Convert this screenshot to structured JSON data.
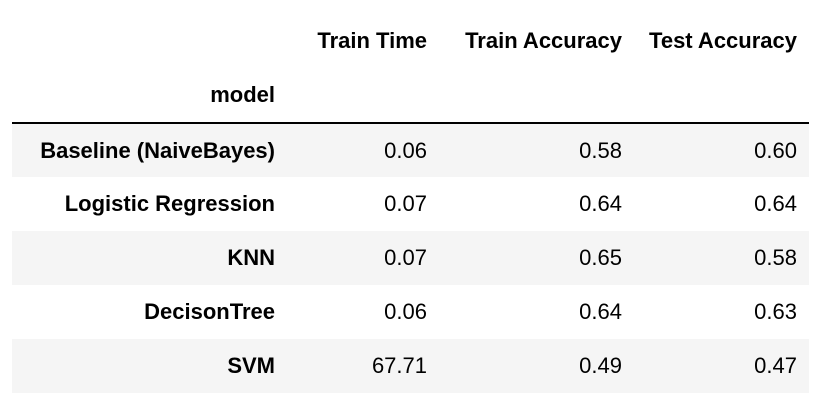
{
  "table": {
    "columns": [
      "Train Time",
      "Train Accuracy",
      "Test Accuracy"
    ],
    "index_name": "model",
    "rows": [
      {
        "model": "Baseline (NaiveBayes)",
        "train_time": "0.06",
        "train_accuracy": "0.58",
        "test_accuracy": "0.60"
      },
      {
        "model": "Logistic Regression",
        "train_time": "0.07",
        "train_accuracy": "0.64",
        "test_accuracy": "0.64"
      },
      {
        "model": "KNN",
        "train_time": "0.07",
        "train_accuracy": "0.65",
        "test_accuracy": "0.58"
      },
      {
        "model": "DecisonTree",
        "train_time": "0.06",
        "train_accuracy": "0.64",
        "test_accuracy": "0.63"
      },
      {
        "model": "SVM",
        "train_time": "67.71",
        "train_accuracy": "0.49",
        "test_accuracy": "0.47"
      }
    ]
  }
}
